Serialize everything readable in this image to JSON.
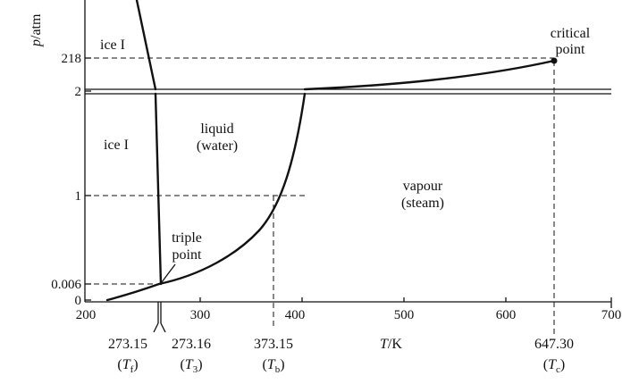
{
  "y_axis": {
    "symbol": "p",
    "unit": "/atm"
  },
  "x_axis": {
    "symbol": "T",
    "unit": "/K"
  },
  "y_ticks": [
    "218",
    "2",
    "1",
    "0.006",
    "0"
  ],
  "x_ticks": [
    "200",
    "300",
    "400",
    "500",
    "600",
    "700"
  ],
  "region_labels": {
    "ice_upper": "ice I",
    "ice_lower": "ice I",
    "liquid_line1": "liquid",
    "liquid_line2": "(water)",
    "vapour_line1": "vapour",
    "vapour_line2": "(steam)"
  },
  "point_labels": {
    "critical_line1": "critical",
    "critical_line2": "point",
    "triple_line1": "triple",
    "triple_line2": "point"
  },
  "marked_temperatures": [
    {
      "value": "273.15",
      "sym": "T",
      "sub": "f"
    },
    {
      "value": "273.16",
      "sym": "T",
      "sub": "3"
    },
    {
      "value": "373.15",
      "sym": "T",
      "sub": "b"
    },
    {
      "value": "647.30",
      "sym": "T",
      "sub": "c"
    }
  ]
}
